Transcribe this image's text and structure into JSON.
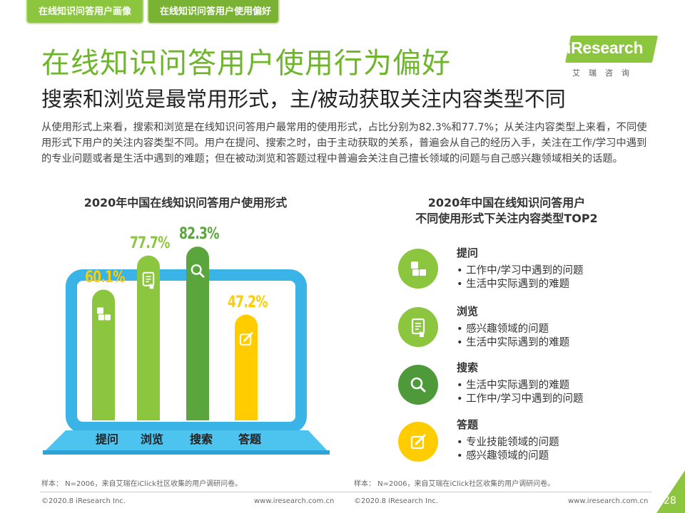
{
  "tabs": [
    "在线知识问答用户画像",
    "在线知识问答用户使用偏好"
  ],
  "logo": {
    "brand": "iResearch",
    "cn": "艾瑞咨询"
  },
  "title": "在线知识问答用户使用行为偏好",
  "subtitle": "搜索和浏览是最常用形式，主/被动获取关注内容类型不同",
  "description": "从使用形式上来看，搜索和浏览是在线知识问答用户最常用的使用形式，占比分别为82.3%和77.7%；从关注内容类型上来看，不同使用形式下用户的关注内容类型不同。用户在提问、搜索之时，由于主动获取的关系，普遍会从自己的经历入手，关注在工作/学习中遇到的专业问题或者是生活中遇到的难题；但在被动浏览和答题过程中普遍会关注自己擅长领域的问题与自己感兴趣领域相关的话题。",
  "chart_data": {
    "type": "bar",
    "title": "2020年中国在线知识问答用户使用形式",
    "categories": [
      "提问",
      "浏览",
      "搜索",
      "答题"
    ],
    "values": [
      60.1,
      77.7,
      82.3,
      47.2
    ],
    "value_labels": [
      "60.1%",
      "77.7%",
      "82.3%",
      "47.2%"
    ],
    "unit": "%",
    "ylim": [
      0,
      100
    ],
    "colors": [
      "#8cc63f",
      "#8cc63f",
      "#5aa53c",
      "#ffcc00"
    ],
    "label_colors": [
      "#ffcc00",
      "#8cc63f",
      "#5aa53c",
      "#ffcc00"
    ],
    "icons": [
      "qa-icon",
      "document-icon",
      "search-icon",
      "edit-icon"
    ]
  },
  "right": {
    "title_line1": "2020年中国在线知识问答用户",
    "title_line2": "不同使用形式下关注内容类型TOP2",
    "sections": [
      {
        "title": "提问",
        "items": [
          "•  工作中/学习中遇到的问题",
          "•  生活中实际遇到的难题"
        ],
        "color": "#8cc63f",
        "icon": "qa-icon"
      },
      {
        "title": "浏览",
        "items": [
          "•  感兴趣领域的问题",
          "•  生活中实际遇到的难题"
        ],
        "color": "#8cc63f",
        "icon": "document-icon"
      },
      {
        "title": "搜索",
        "items": [
          "•  生活中实际遇到的难题",
          "•  工作中/学习中遇到的问题"
        ],
        "color": "#4e9a3a",
        "icon": "search-icon"
      },
      {
        "title": "答题",
        "items": [
          "•  专业技能领域的问题",
          "•  感兴趣领域的问题"
        ],
        "color": "#ffcc00",
        "icon": "edit-icon"
      }
    ]
  },
  "notes": {
    "left": "样本： N=2006，来自艾瑞在iClick社区收集的用户调研问卷。",
    "right": "样本： N=2006，来自艾瑞在iClick社区收集的用户调研问卷。"
  },
  "footer": {
    "copyright_left": "©2020.8 iResearch Inc.",
    "url_left": "www.iresearch.com.cn",
    "copyright_right": "©2020.8 iResearch Inc.",
    "url_right": "www.iresearch.com.cn",
    "page": "28"
  }
}
